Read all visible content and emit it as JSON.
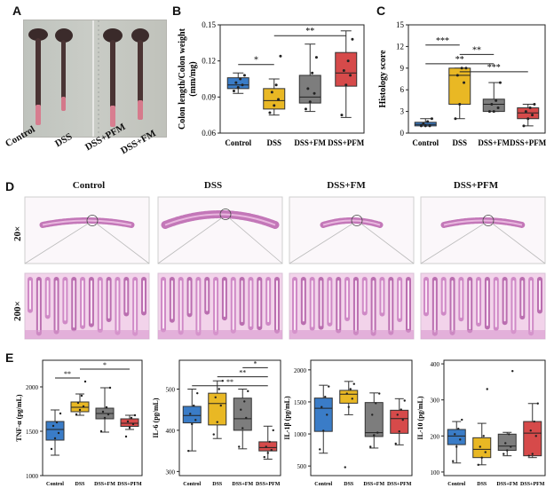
{
  "panels": {
    "a": "A",
    "b": "B",
    "c": "C",
    "d": "D",
    "e": "E"
  },
  "panel_a": {
    "labels": [
      "Control",
      "DSS",
      "DSS+PFM",
      "DSS+FM"
    ]
  },
  "panel_d": {
    "columns": [
      "Control",
      "DSS",
      "DSS+FM",
      "DSS+PFM"
    ],
    "magnifications": [
      "20×",
      "200×"
    ]
  },
  "colors": {
    "control": "#3a7cc7",
    "dss": "#e9b824",
    "fm": "#7d7d7d",
    "pfm": "#d64a4a"
  },
  "chart_data": [
    {
      "id": "B",
      "type": "box",
      "ylabel": "Colon length/Colon weight (mm/mg)",
      "categories": [
        "Control",
        "DSS",
        "DSS+FM",
        "DSS+PFM"
      ],
      "ylim": [
        0.06,
        0.15
      ],
      "yticks": [
        0.06,
        0.09,
        0.12,
        0.15
      ],
      "ytick_labels": [
        "0.06",
        "0.09",
        "0.12",
        "0.15"
      ],
      "boxes": [
        {
          "min": 0.093,
          "q1": 0.097,
          "median": 0.1,
          "q3": 0.106,
          "max": 0.11
        },
        {
          "min": 0.075,
          "q1": 0.08,
          "median": 0.087,
          "q3": 0.097,
          "max": 0.105
        },
        {
          "min": 0.078,
          "q1": 0.085,
          "median": 0.09,
          "q3": 0.108,
          "max": 0.134
        },
        {
          "min": 0.073,
          "q1": 0.099,
          "median": 0.11,
          "q3": 0.127,
          "max": 0.145
        }
      ],
      "points": [
        [
          0.095,
          0.098,
          0.1,
          0.102,
          0.105,
          0.108
        ],
        [
          0.077,
          0.083,
          0.088,
          0.094,
          0.1,
          0.124
        ],
        [
          0.08,
          0.086,
          0.093,
          0.097,
          0.11,
          0.123
        ],
        [
          0.075,
          0.1,
          0.108,
          0.112,
          0.12,
          0.138
        ]
      ],
      "significance": [
        {
          "from": 0,
          "to": 1,
          "label": "*",
          "y": 0.117
        },
        {
          "from": 1,
          "to": 3,
          "label": "**",
          "y": 0.141
        }
      ]
    },
    {
      "id": "C",
      "type": "box",
      "ylabel": "Histology score",
      "categories": [
        "Control",
        "DSS",
        "DSS+FM",
        "DSS+PFM"
      ],
      "ylim": [
        0,
        15
      ],
      "yticks": [
        0,
        3,
        6,
        9,
        12,
        15
      ],
      "ytick_labels": [
        "0",
        "3",
        "6",
        "9",
        "12",
        "15"
      ],
      "boxes": [
        {
          "min": 1,
          "q1": 1,
          "median": 1.2,
          "q3": 1.5,
          "max": 2
        },
        {
          "min": 2,
          "q1": 4,
          "median": 8,
          "q3": 9,
          "max": 9
        },
        {
          "min": 3,
          "q1": 3,
          "median": 4,
          "q3": 4.7,
          "max": 7
        },
        {
          "min": 1,
          "q1": 2,
          "median": 2.8,
          "q3": 3.5,
          "max": 4
        }
      ],
      "points": [
        [
          1,
          1,
          1,
          1.3,
          1.6,
          2
        ],
        [
          2,
          4,
          7,
          8,
          9,
          9
        ],
        [
          3,
          3,
          3.5,
          4,
          4.5,
          7
        ],
        [
          1,
          2,
          2.5,
          3,
          3.5,
          4
        ]
      ],
      "significance": [
        {
          "from": 0,
          "to": 1,
          "label": "***",
          "y": 12.2
        },
        {
          "from": 1,
          "to": 2,
          "label": "**",
          "y": 10.9
        },
        {
          "from": 0,
          "to": 2,
          "label": "**",
          "y": 9.6
        },
        {
          "from": 1,
          "to": 3,
          "label": "***",
          "y": 8.5
        }
      ]
    },
    {
      "id": "E1",
      "type": "box",
      "ylabel": "TNF-α (pg/mL)",
      "categories": [
        "Control",
        "DSS",
        "DSS+FM",
        "DSS+PFM"
      ],
      "ylim": [
        1000,
        2300
      ],
      "yticks": [
        1000,
        1500,
        2000
      ],
      "ytick_labels": [
        "1000",
        "1500",
        "2000"
      ],
      "boxes": [
        {
          "min": 1230,
          "q1": 1400,
          "median": 1520,
          "q3": 1610,
          "max": 1740
        },
        {
          "min": 1680,
          "q1": 1720,
          "median": 1770,
          "q3": 1830,
          "max": 1920
        },
        {
          "min": 1490,
          "q1": 1640,
          "median": 1700,
          "q3": 1760,
          "max": 1990
        },
        {
          "min": 1520,
          "q1": 1555,
          "median": 1590,
          "q3": 1640,
          "max": 1680
        }
      ],
      "points": [
        [
          1300,
          1420,
          1480,
          1560,
          1600,
          1700
        ],
        [
          1690,
          1740,
          1780,
          1820,
          1900,
          2060
        ],
        [
          1500,
          1650,
          1690,
          1720,
          1770,
          1990
        ],
        [
          1440,
          1540,
          1580,
          1610,
          1650,
          1680
        ]
      ],
      "significance": [
        {
          "from": 0,
          "to": 1,
          "label": "**",
          "y": 2100
        },
        {
          "from": 1,
          "to": 3,
          "label": "*",
          "y": 2200
        }
      ]
    },
    {
      "id": "E2",
      "type": "box",
      "ylabel": "IL-6 (pg/mL)",
      "categories": [
        "Control",
        "DSS",
        "DSS+FM",
        "DSS+PFM"
      ],
      "ylim": [
        290,
        570
      ],
      "yticks": [
        300,
        400,
        500
      ],
      "ytick_labels": [
        "300",
        "400",
        "500"
      ],
      "boxes": [
        {
          "min": 350,
          "q1": 418,
          "median": 436,
          "q3": 458,
          "max": 500
        },
        {
          "min": 380,
          "q1": 413,
          "median": 465,
          "q3": 490,
          "max": 520
        },
        {
          "min": 355,
          "q1": 400,
          "median": 428,
          "q3": 478,
          "max": 500
        },
        {
          "min": 330,
          "q1": 350,
          "median": 358,
          "q3": 372,
          "max": 410
        }
      ],
      "points": [
        [
          350,
          415,
          425,
          440,
          460,
          490
        ],
        [
          390,
          420,
          460,
          480,
          500,
          520
        ],
        [
          360,
          405,
          430,
          450,
          470,
          495
        ],
        [
          335,
          345,
          352,
          360,
          372,
          400
        ]
      ],
      "significance": [
        {
          "from": 0,
          "to": 3,
          "label": "**",
          "y": 508
        },
        {
          "from": 1,
          "to": 3,
          "label": "**",
          "y": 530
        },
        {
          "from": 2,
          "to": 3,
          "label": "*",
          "y": 552
        }
      ]
    },
    {
      "id": "E3",
      "type": "box",
      "ylabel": "IL-1β (pg/mL)",
      "categories": [
        "Control",
        "DSS",
        "DSS+FM",
        "DSS+PFM"
      ],
      "ylim": [
        350,
        2150
      ],
      "yticks": [
        500,
        1000,
        1500,
        2000
      ],
      "ytick_labels": [
        "500",
        "1000",
        "1500",
        "2000"
      ],
      "boxes": [
        {
          "min": 700,
          "q1": 1040,
          "median": 1400,
          "q3": 1560,
          "max": 1760
        },
        {
          "min": 1300,
          "q1": 1480,
          "median": 1620,
          "q3": 1680,
          "max": 1820
        },
        {
          "min": 780,
          "q1": 960,
          "median": 1020,
          "q3": 1490,
          "max": 1640
        },
        {
          "min": 830,
          "q1": 1010,
          "median": 1240,
          "q3": 1370,
          "max": 1550
        }
      ],
      "points": [
        [
          760,
          1050,
          1300,
          1420,
          1580,
          1740
        ],
        [
          480,
          1420,
          1550,
          1630,
          1700,
          1780
        ],
        [
          800,
          980,
          1020,
          1300,
          1480,
          1630
        ],
        [
          850,
          1040,
          1220,
          1300,
          1380,
          1520
        ]
      ],
      "significance": []
    },
    {
      "id": "E4",
      "type": "box",
      "ylabel": "IL-10 (pg/mL)",
      "categories": [
        "Control",
        "DSS",
        "DSS+FM",
        "DSS+PFM"
      ],
      "ylim": [
        90,
        410
      ],
      "yticks": [
        100,
        200,
        300,
        400
      ],
      "ytick_labels": [
        "100",
        "200",
        "300",
        "400"
      ],
      "boxes": [
        {
          "min": 125,
          "q1": 176,
          "median": 200,
          "q3": 218,
          "max": 240
        },
        {
          "min": 120,
          "q1": 140,
          "median": 163,
          "q3": 195,
          "max": 235
        },
        {
          "min": 145,
          "q1": 160,
          "median": 172,
          "q3": 205,
          "max": 210
        },
        {
          "min": 140,
          "q1": 145,
          "median": 208,
          "q3": 240,
          "max": 290
        }
      ],
      "points": [
        [
          130,
          170,
          190,
          205,
          220,
          245
        ],
        [
          120,
          140,
          155,
          170,
          200,
          330
        ],
        [
          150,
          160,
          170,
          180,
          205,
          380
        ],
        [
          145,
          150,
          200,
          215,
          240,
          290
        ]
      ],
      "significance": []
    }
  ]
}
